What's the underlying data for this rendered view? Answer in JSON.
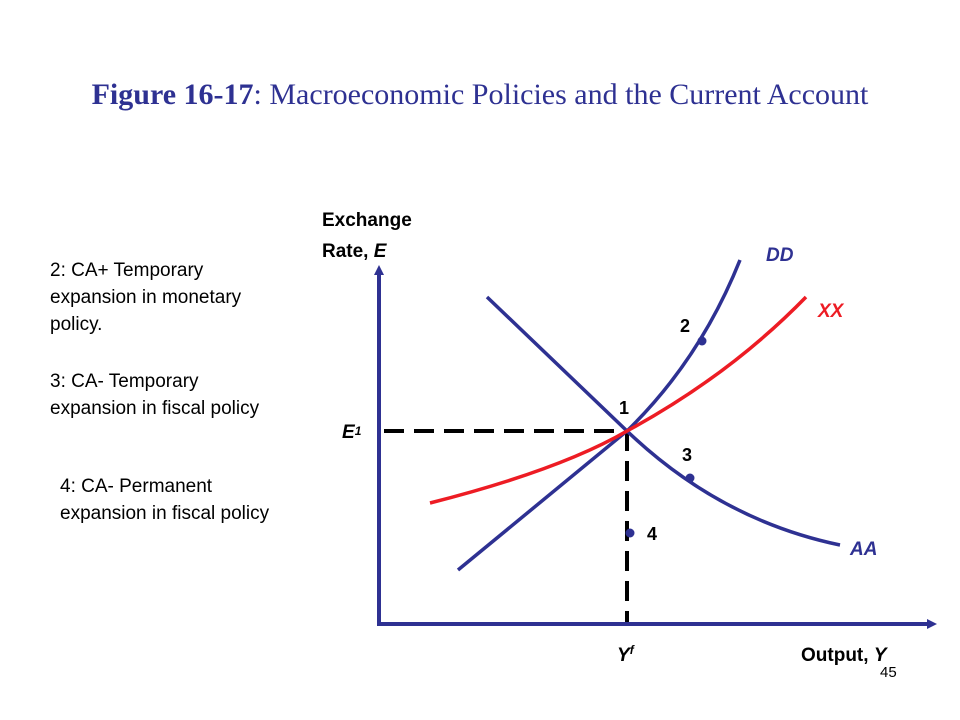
{
  "slide": {
    "title_bold": "Figure 16-17",
    "title_rest": ": Macroeconomic Policies and the Current Account",
    "page_number": "45"
  },
  "notes": [
    {
      "line1": "2: CA+ Temporary",
      "line2": "expansion in monetary",
      "line3": "policy."
    },
    {
      "line1": "3: CA- Temporary",
      "line2": "expansion in fiscal policy"
    },
    {
      "line1": "4: CA- Permanent",
      "line2": "expansion in fiscal policy"
    }
  ],
  "diagram": {
    "y_axis_label_line1": "Exchange",
    "y_axis_label_line2_prefix": "Rate, ",
    "y_axis_label_var": "E",
    "x_axis_label_prefix": "Output, ",
    "x_axis_label_var": "Y",
    "e_label": "E",
    "e_sub": "1",
    "y_label": "Y",
    "y_sup": "f",
    "curves": [
      {
        "name": "DD",
        "color": "#2e3192"
      },
      {
        "name": "XX",
        "color": "#ed1c24"
      },
      {
        "name": "AA",
        "color": "#2e3192"
      }
    ],
    "points": [
      "1",
      "2",
      "3",
      "4"
    ],
    "colors": {
      "axis": "#2e3192",
      "dd": "#2e3192",
      "aa": "#2e3192",
      "xx": "#ed1c24",
      "title": "#2e3192"
    }
  }
}
